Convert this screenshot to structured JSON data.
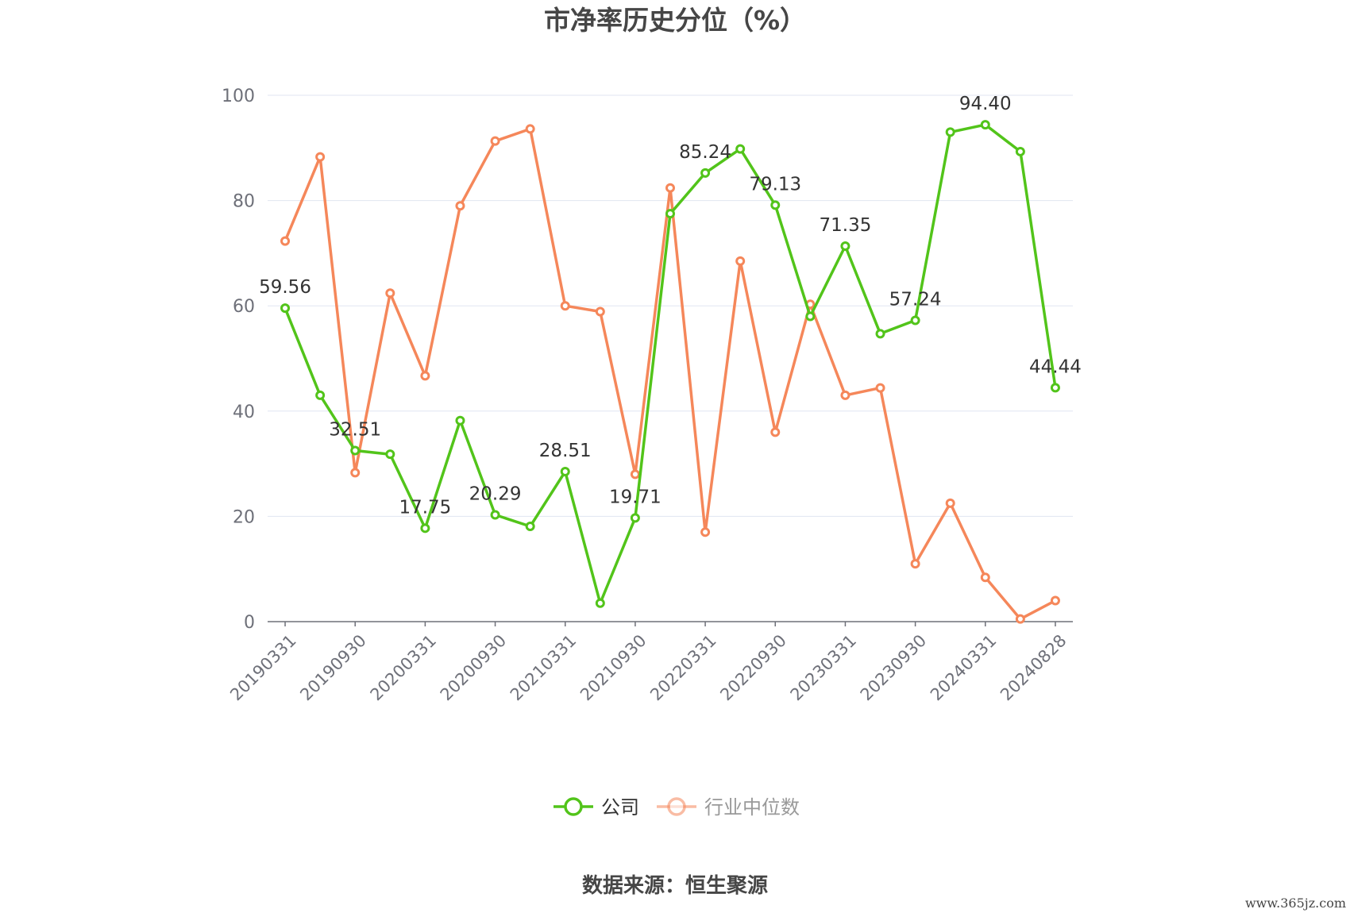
{
  "chart_data": {
    "type": "line",
    "title": "市净率历史分位（%）",
    "ylim": [
      0,
      100
    ],
    "yticks": [
      0,
      20,
      40,
      60,
      80,
      100
    ],
    "x": [
      "20190331",
      "20190630",
      "20190930",
      "20191231",
      "20200331",
      "20200630",
      "20200930",
      "20201231",
      "20210331",
      "20210630",
      "20210930",
      "20211231",
      "20220331",
      "20220630",
      "20220930",
      "20221231",
      "20230331",
      "20230630",
      "20230930",
      "20231231",
      "20240331",
      "20240630",
      "20240828"
    ],
    "xtick_labels": [
      "20190331",
      "20190930",
      "20200331",
      "20200930",
      "20210331",
      "20210930",
      "20220331",
      "20220930",
      "20230331",
      "20230930",
      "20240331",
      "20240828"
    ],
    "grid": true,
    "legend_position": "bottom-center",
    "series": [
      {
        "name": "公司",
        "color": "#52c41a",
        "values": [
          59.56,
          43.0,
          32.51,
          31.8,
          17.75,
          38.2,
          20.29,
          18.1,
          28.51,
          3.5,
          19.71,
          77.5,
          85.24,
          89.8,
          79.13,
          58.0,
          71.35,
          54.7,
          57.24,
          93.0,
          94.4,
          89.3,
          44.44
        ],
        "labeled_values": {
          "0": "59.56",
          "2": "32.51",
          "4": "17.75",
          "6": "20.29",
          "8": "28.51",
          "10": "19.71",
          "12": "85.24",
          "14": "79.13",
          "16": "71.35",
          "18": "57.24",
          "20": "94.40",
          "22": "44.44"
        }
      },
      {
        "name": "行业中位数",
        "color": "#f5875a",
        "values": [
          72.3,
          88.3,
          28.3,
          62.4,
          46.7,
          79.0,
          91.3,
          93.6,
          60.0,
          58.9,
          28.0,
          82.4,
          17.0,
          68.5,
          36.0,
          60.3,
          43.0,
          44.4,
          11.0,
          22.5,
          8.4,
          0.5,
          4.0
        ]
      }
    ],
    "source": "数据来源：恒生聚源"
  },
  "watermark": "www.365jz.com"
}
